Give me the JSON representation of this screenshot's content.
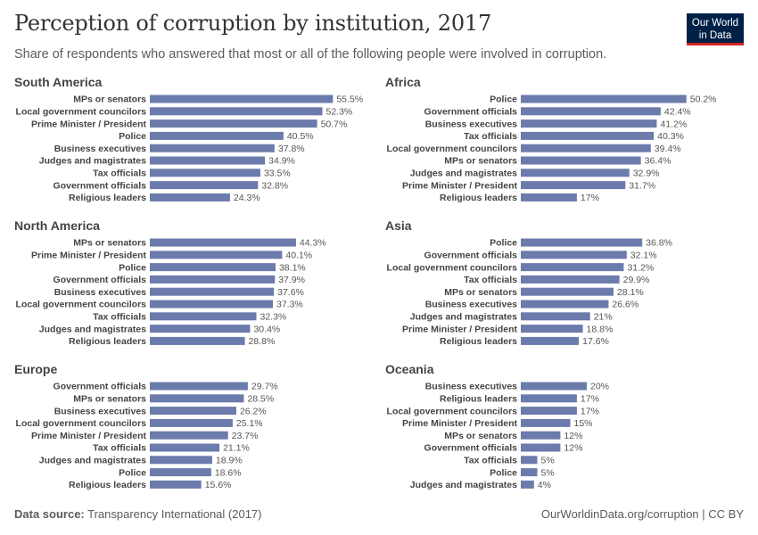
{
  "header": {
    "title": "Perception of corruption by institution, 2017",
    "subtitle": "Share of respondents who answered that most or all of the following people were involved in corruption.",
    "logo_line1": "Our World",
    "logo_line2": "in Data"
  },
  "footer": {
    "source_label": "Data source:",
    "source_text": "Transparency International (2017)",
    "credit": "OurWorldinData.org/corruption | CC BY"
  },
  "colors": {
    "bar": "#6b7bab"
  },
  "chart_data": [
    {
      "type": "bar",
      "title": "South America",
      "unit": "%",
      "categories": [
        "MPs or senators",
        "Local government councilors",
        "Prime Minister / President",
        "Police",
        "Business executives",
        "Judges and magistrates",
        "Tax officials",
        "Government officials",
        "Religious leaders"
      ],
      "values": [
        55.5,
        52.3,
        50.7,
        40.5,
        37.8,
        34.9,
        33.5,
        32.8,
        24.3
      ]
    },
    {
      "type": "bar",
      "title": "Africa",
      "unit": "%",
      "categories": [
        "Police",
        "Government officials",
        "Business executives",
        "Tax officials",
        "Local government councilors",
        "MPs or senators",
        "Judges and magistrates",
        "Prime Minister / President",
        "Religious leaders"
      ],
      "values": [
        50.2,
        42.4,
        41.2,
        40.3,
        39.4,
        36.4,
        32.9,
        31.7,
        17
      ]
    },
    {
      "type": "bar",
      "title": "North America",
      "unit": "%",
      "categories": [
        "MPs or senators",
        "Prime Minister / President",
        "Police",
        "Government officials",
        "Business executives",
        "Local government councilors",
        "Tax officials",
        "Judges and magistrates",
        "Religious leaders"
      ],
      "values": [
        44.3,
        40.1,
        38.1,
        37.9,
        37.6,
        37.3,
        32.3,
        30.4,
        28.8
      ]
    },
    {
      "type": "bar",
      "title": "Asia",
      "unit": "%",
      "categories": [
        "Police",
        "Government officials",
        "Local government councilors",
        "Tax officials",
        "MPs or senators",
        "Business executives",
        "Judges and magistrates",
        "Prime Minister / President",
        "Religious leaders"
      ],
      "values": [
        36.8,
        32.1,
        31.2,
        29.9,
        28.1,
        26.6,
        21,
        18.8,
        17.6
      ]
    },
    {
      "type": "bar",
      "title": "Europe",
      "unit": "%",
      "categories": [
        "Government officials",
        "MPs or senators",
        "Business executives",
        "Local government councilors",
        "Prime Minister / President",
        "Tax officials",
        "Judges and magistrates",
        "Police",
        "Religious leaders"
      ],
      "values": [
        29.7,
        28.5,
        26.2,
        25.1,
        23.7,
        21.1,
        18.9,
        18.6,
        15.6
      ]
    },
    {
      "type": "bar",
      "title": "Oceania",
      "unit": "%",
      "categories": [
        "Business executives",
        "Religious leaders",
        "Local government councilors",
        "Prime Minister / President",
        "MPs or senators",
        "Government officials",
        "Tax officials",
        "Police",
        "Judges and magistrates"
      ],
      "values": [
        20,
        17,
        17,
        15,
        12,
        12,
        5,
        5,
        4
      ]
    }
  ]
}
